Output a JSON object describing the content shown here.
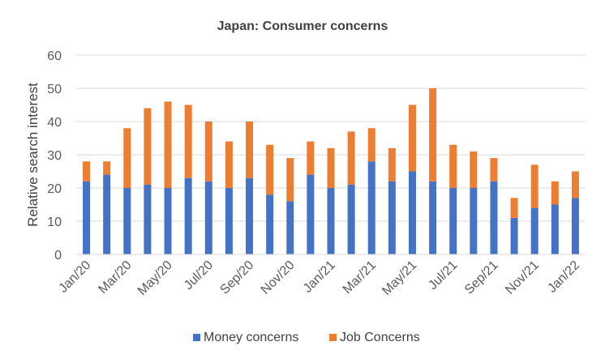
{
  "chart_data": {
    "type": "bar",
    "stacked": true,
    "title": "Japan: Consumer concerns",
    "xlabel": "",
    "ylabel": "Relative search interest",
    "ylim": [
      0,
      60
    ],
    "yticks": [
      "0",
      "10",
      "20",
      "30",
      "40",
      "50",
      "60"
    ],
    "grid": true,
    "legend_position": "bottom",
    "categories": [
      "Jan/20",
      "Feb/20",
      "Mar/20",
      "Apr/20",
      "May/20",
      "Jun/20",
      "Jul/20",
      "Aug/20",
      "Sep/20",
      "Oct/20",
      "Nov/20",
      "Dec/20",
      "Jan/21",
      "Feb/21",
      "Mar/21",
      "Apr/21",
      "May/21",
      "Jun/21",
      "Jul/21",
      "Aug/21",
      "Sep/21",
      "Oct/21",
      "Nov/21",
      "Dec/21",
      "Jan/22"
    ],
    "xtick_labels": [
      "Jan/20",
      "",
      "Mar/20",
      "",
      "May/20",
      "",
      "Jul/20",
      "",
      "Sep/20",
      "",
      "Nov/20",
      "",
      "Jan/21",
      "",
      "Mar/21",
      "",
      "May/21",
      "",
      "Jul/21",
      "",
      "Sep/21",
      "",
      "Nov/21",
      "",
      "Jan/22"
    ],
    "series": [
      {
        "name": "Money concerns",
        "color": "#4472c4",
        "values": [
          22,
          24,
          20,
          21,
          20,
          23,
          22,
          20,
          23,
          18,
          16,
          24,
          20,
          21,
          28,
          22,
          25,
          22,
          20,
          20,
          22,
          11,
          14,
          15,
          17
        ]
      },
      {
        "name": "Job Concerns",
        "color": "#ed7d31",
        "values": [
          6,
          4,
          18,
          23,
          26,
          22,
          18,
          14,
          17,
          15,
          13,
          10,
          12,
          16,
          10,
          10,
          20,
          28,
          13,
          11,
          7,
          6,
          13,
          7,
          8
        ]
      }
    ]
  }
}
